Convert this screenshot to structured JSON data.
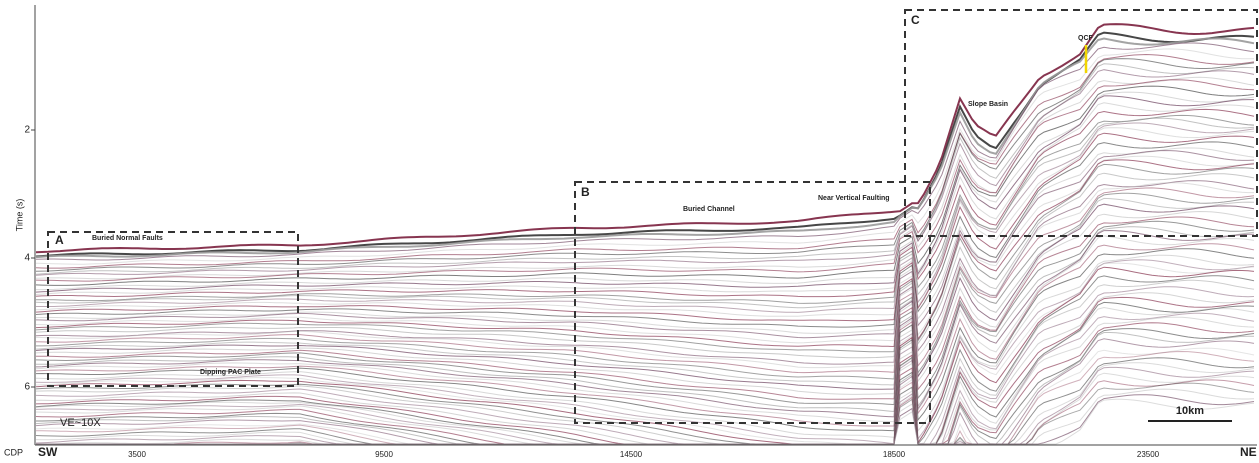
{
  "y_axis": {
    "label": "Time (s)",
    "ticks": [
      "2",
      "4",
      "6"
    ]
  },
  "x_axis": {
    "prefix": "CDP",
    "start": "SW",
    "end": "NE",
    "ticks": [
      "3500",
      "9500",
      "14500",
      "18500",
      "23500"
    ]
  },
  "boxes": [
    {
      "label": "A"
    },
    {
      "label": "B"
    },
    {
      "label": "C"
    }
  ],
  "annotations": [
    "Buried Normal Faults",
    "Dipping PAC Plate",
    "Buried Channel",
    "Near Vertical Faulting",
    "Slope Basin",
    "QCF"
  ],
  "exaggeration": "VE~10X",
  "scale_bar": "10km"
}
